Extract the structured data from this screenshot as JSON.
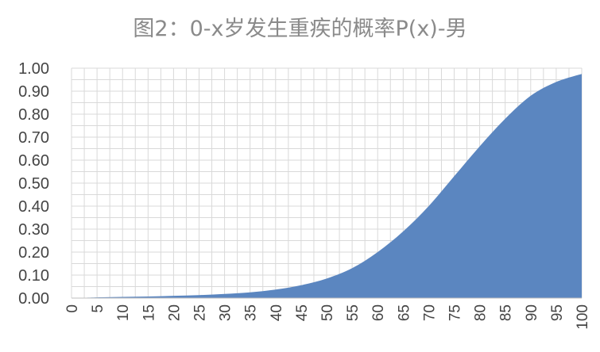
{
  "chart_data": {
    "type": "area",
    "title": "图2：0-x岁发生重疾的概率P(x)-男",
    "xlabel": "",
    "ylabel": "",
    "xlim": [
      0,
      100
    ],
    "ylim": [
      0,
      1
    ],
    "grid": true,
    "x_ticks": [
      "0",
      "5",
      "10",
      "15",
      "20",
      "25",
      "30",
      "35",
      "40",
      "45",
      "50",
      "55",
      "60",
      "65",
      "70",
      "75",
      "80",
      "85",
      "90",
      "95",
      "100"
    ],
    "y_ticks": [
      "0.00",
      "0.10",
      "0.20",
      "0.30",
      "0.40",
      "0.50",
      "0.60",
      "0.70",
      "0.80",
      "0.90",
      "1.00"
    ],
    "fill_color": "#5b86c0",
    "grid_color": "#d9d9d9",
    "series": [
      {
        "x": [
          0,
          5,
          10,
          15,
          20,
          25,
          30,
          35,
          40,
          45,
          50,
          55,
          60,
          65,
          70,
          75,
          80,
          85,
          90,
          95,
          100
        ],
        "values": [
          0.0,
          0.003,
          0.005,
          0.007,
          0.01,
          0.013,
          0.018,
          0.025,
          0.037,
          0.056,
          0.085,
          0.13,
          0.2,
          0.29,
          0.4,
          0.53,
          0.66,
          0.78,
          0.88,
          0.94,
          0.975
        ]
      }
    ]
  }
}
